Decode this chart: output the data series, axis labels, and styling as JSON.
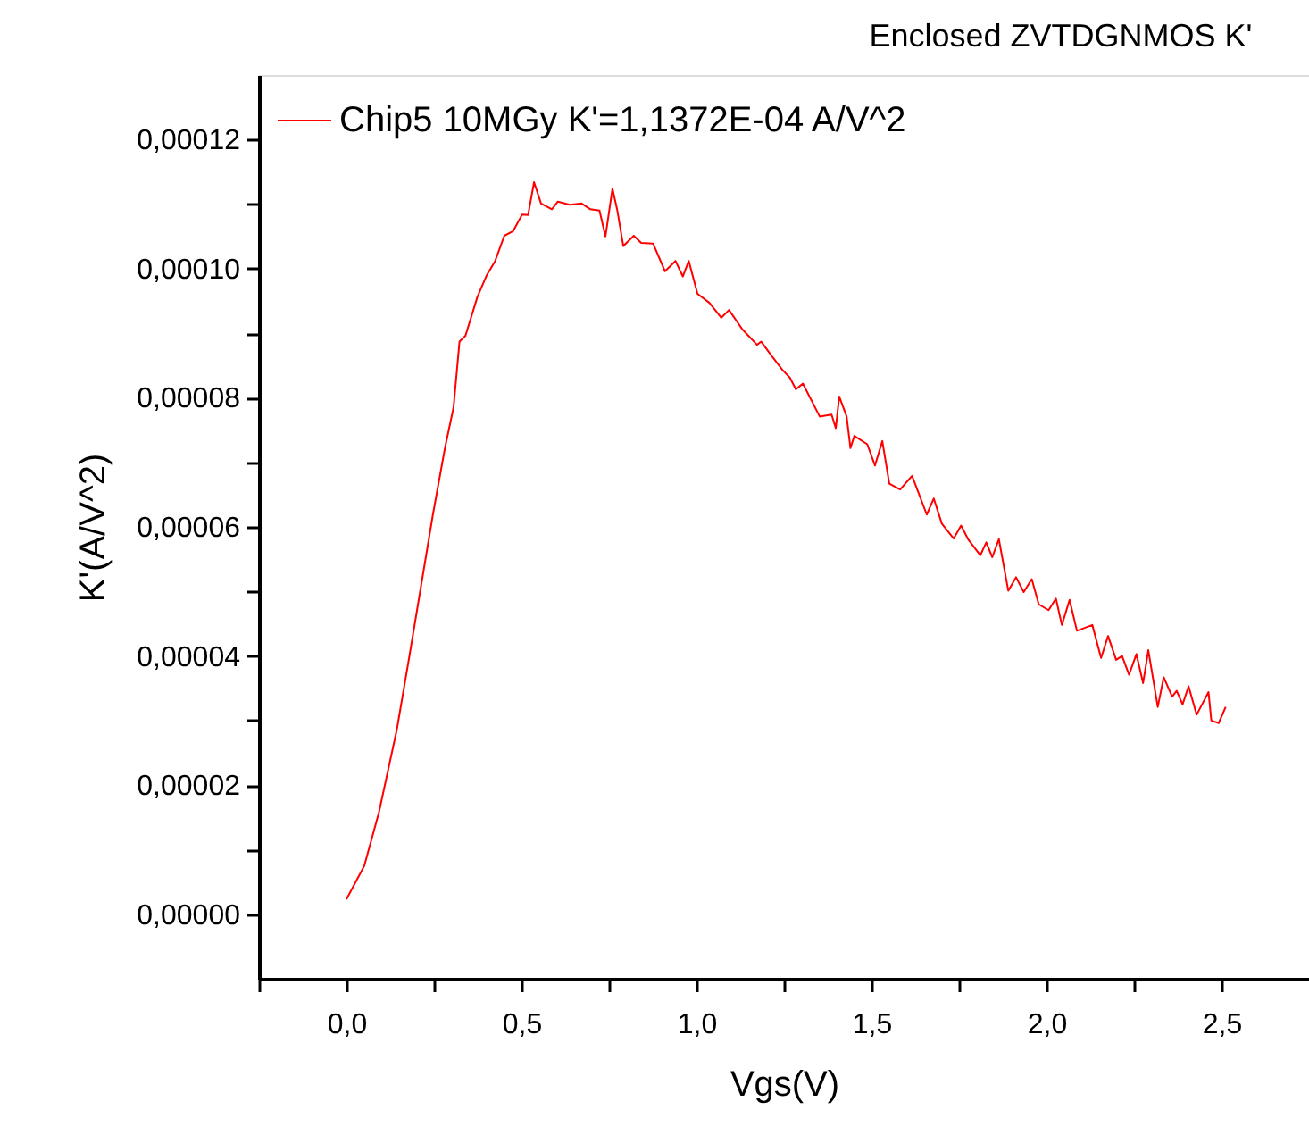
{
  "chart_data": {
    "type": "line",
    "title": "Enclosed ZVTDGNMOS K'",
    "xlabel": "Vgs(V)",
    "ylabel": "K'(A/V^2)",
    "xlim": [
      -0.25,
      2.75
    ],
    "ylim": [
      -1e-05,
      0.00013
    ],
    "xticks": [
      {
        "value": -0.25,
        "label": null
      },
      {
        "value": 0,
        "label": "0,0"
      },
      {
        "value": 0.25,
        "label": null
      },
      {
        "value": 0.5,
        "label": "0,5"
      },
      {
        "value": 0.75,
        "label": null
      },
      {
        "value": 1,
        "label": "1,0"
      },
      {
        "value": 1.25,
        "label": null
      },
      {
        "value": 1.5,
        "label": "1,5"
      },
      {
        "value": 1.75,
        "label": null
      },
      {
        "value": 2,
        "label": "2,0"
      },
      {
        "value": 2.25,
        "label": null
      },
      {
        "value": 2.5,
        "label": "2,5"
      }
    ],
    "yticks": [
      {
        "value": 0,
        "label": "0,00000"
      },
      {
        "value": 1e-05,
        "label": null
      },
      {
        "value": 2e-05,
        "label": "0,00002"
      },
      {
        "value": 3e-05,
        "label": null
      },
      {
        "value": 4e-05,
        "label": "0,00004"
      },
      {
        "value": 5e-05,
        "label": null
      },
      {
        "value": 6e-05,
        "label": "0,00006"
      },
      {
        "value": 7e-05,
        "label": null
      },
      {
        "value": 8e-05,
        "label": "0,00008"
      },
      {
        "value": 9e-05,
        "label": null
      },
      {
        "value": 0.0001,
        "label": "0,00010"
      },
      {
        "value": 0.00011,
        "label": null
      },
      {
        "value": 0.00012,
        "label": "0,00012"
      }
    ],
    "grid": false,
    "legend": "top left",
    "marker": "none",
    "line_style": "solid",
    "series": [
      {
        "name": "Chip5 10MGy K'=1,1372E-04 A/V^2",
        "color": "#ff0000",
        "x": [
          0,
          0.051,
          0.093,
          0.144,
          0.179,
          0.213,
          0.247,
          0.281,
          0.306,
          0.323,
          0.34,
          0.374,
          0.4,
          0.425,
          0.451,
          0.476,
          0.502,
          0.519,
          0.536,
          0.556,
          0.587,
          0.604,
          0.638,
          0.672,
          0.697,
          0.723,
          0.74,
          0.76,
          0.774,
          0.791,
          0.821,
          0.842,
          0.876,
          0.91,
          0.94,
          0.961,
          0.978,
          1.003,
          1.037,
          1.071,
          1.093,
          1.131,
          1.173,
          1.185,
          1.216,
          1.246,
          1.267,
          1.284,
          1.304,
          1.352,
          1.386,
          1.398,
          1.408,
          1.429,
          1.44,
          1.451,
          1.488,
          1.51,
          1.531,
          1.551,
          1.582,
          1.616,
          1.658,
          1.678,
          1.701,
          1.735,
          1.756,
          1.777,
          1.811,
          1.828,
          1.845,
          1.864,
          1.891,
          1.913,
          1.935,
          1.958,
          1.978,
          2.006,
          2.027,
          2.044,
          2.066,
          2.087,
          2.131,
          2.156,
          2.176,
          2.199,
          2.216,
          2.236,
          2.257,
          2.276,
          2.291,
          2.318,
          2.335,
          2.359,
          2.372,
          2.389,
          2.406,
          2.429,
          2.463,
          2.471,
          2.492,
          2.512
        ],
        "values": [
          2.3e-06,
          7.5e-06,
          1.58e-05,
          2.86e-05,
          3.97e-05,
          5.08e-05,
          6.19e-05,
          7.21e-05,
          7.85e-05,
          8.87e-05,
          8.96e-05,
          9.56e-05,
          9.89e-05,
          0.0001012,
          0.0001051,
          0.0001058,
          0.0001084,
          0.0001083,
          0.0001134,
          0.0001101,
          0.0001092,
          0.0001104,
          0.0001099,
          0.0001101,
          0.0001092,
          0.000109,
          0.000105,
          0.0001124,
          0.000109,
          0.0001035,
          0.0001051,
          0.000104,
          0.0001039,
          9.96e-05,
          0.0001012,
          9.88e-05,
          0.0001012,
          9.61e-05,
          9.47e-05,
          9.24e-05,
          9.36e-05,
          9.06e-05,
          8.82e-05,
          8.87e-05,
          8.64e-05,
          8.43e-05,
          8.31e-05,
          8.13e-05,
          8.22e-05,
          7.71e-05,
          7.74e-05,
          7.53e-05,
          8.02e-05,
          7.71e-05,
          7.22e-05,
          7.41e-05,
          7.28e-05,
          6.95e-05,
          7.33e-05,
          6.67e-05,
          6.58e-05,
          6.79e-05,
          6.19e-05,
          6.44e-05,
          6.05e-05,
          5.82e-05,
          6.02e-05,
          5.8e-05,
          5.56e-05,
          5.76e-05,
          5.53e-05,
          5.81e-05,
          5.01e-05,
          5.22e-05,
          4.99e-05,
          5.19e-05,
          4.8e-05,
          4.71e-05,
          4.89e-05,
          4.48e-05,
          4.87e-05,
          4.39e-05,
          4.48e-05,
          3.97e-05,
          4.31e-05,
          3.94e-05,
          4e-05,
          3.71e-05,
          4.03e-05,
          3.58e-05,
          4.09e-05,
          3.21e-05,
          3.67e-05,
          3.37e-05,
          3.46e-05,
          3.25e-05,
          3.53e-05,
          3.09e-05,
          3.44e-05,
          3e-05,
          2.96e-05,
          3.21e-05
        ]
      }
    ]
  }
}
